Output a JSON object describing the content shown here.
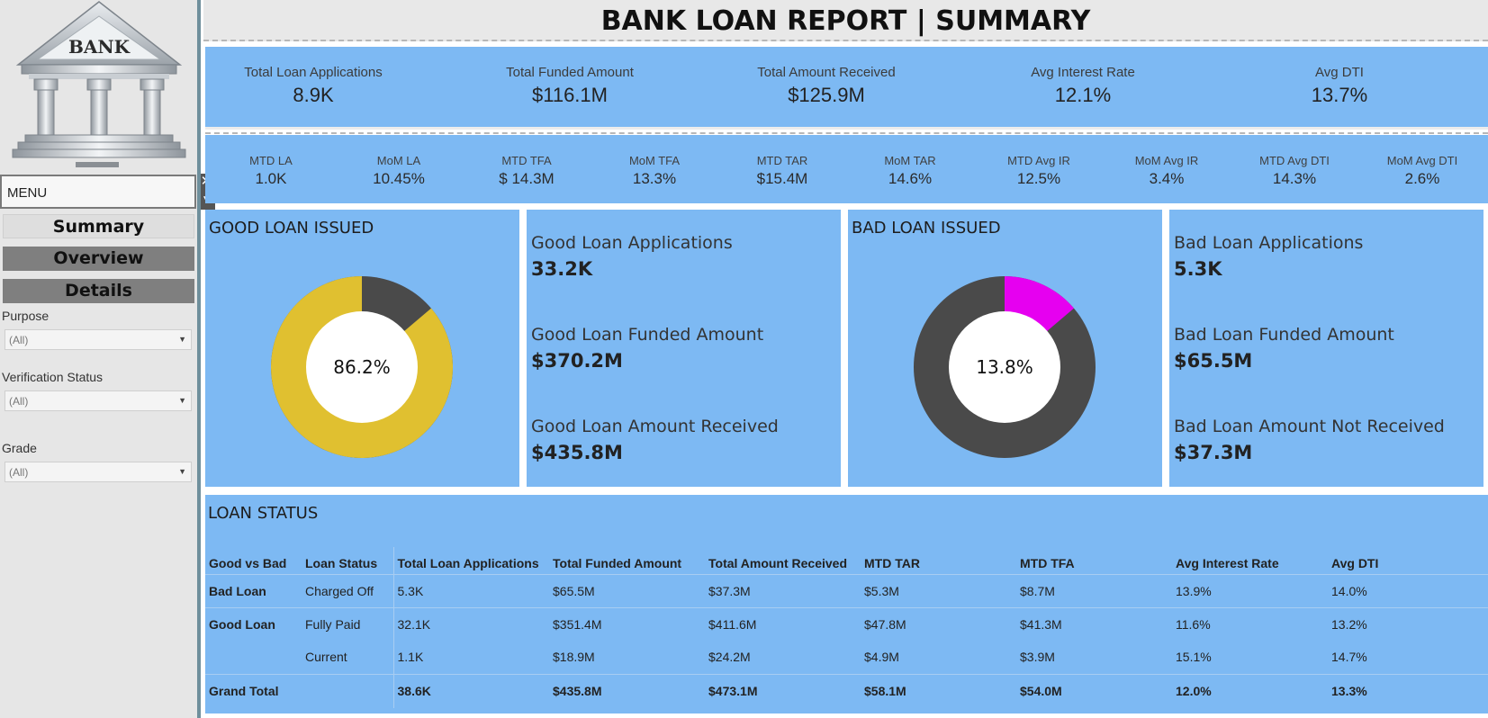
{
  "title": "BANK LOAN REPORT | SUMMARY",
  "sidebar": {
    "logo_text": "BANK",
    "menu_label": "MENU",
    "close_glyph": "✕",
    "collapse_glyph": "▼",
    "nav": [
      {
        "label": "Summary"
      },
      {
        "label": "Overview"
      },
      {
        "label": "Details"
      }
    ],
    "filters": [
      {
        "label": "Purpose",
        "value": "(All)"
      },
      {
        "label": "Verification Status",
        "value": "(All)"
      },
      {
        "label": "Grade",
        "value": "(All)"
      }
    ]
  },
  "kpis": [
    {
      "label": "Total Loan Applications",
      "value": "8.9K"
    },
    {
      "label": "Total Funded Amount",
      "value": "$116.1M"
    },
    {
      "label": "Total Amount Received",
      "value": "$125.9M"
    },
    {
      "label": "Avg Interest Rate",
      "value": "12.1%"
    },
    {
      "label": "Avg DTI",
      "value": "13.7%"
    }
  ],
  "mtd": [
    {
      "label": "MTD LA",
      "value": "1.0K"
    },
    {
      "label": "MoM LA",
      "value": "10.45%"
    },
    {
      "label": "MTD TFA",
      "value": "$ 14.3M"
    },
    {
      "label": "MoM TFA",
      "value": "13.3%"
    },
    {
      "label": "MTD TAR",
      "value": "$15.4M"
    },
    {
      "label": "MoM TAR",
      "value": "14.6%"
    },
    {
      "label": "MTD Avg IR",
      "value": "12.5%"
    },
    {
      "label": "MoM Avg IR",
      "value": "3.4%"
    },
    {
      "label": "MTD Avg DTI",
      "value": "14.3%"
    },
    {
      "label": "MoM Avg DTI",
      "value": "2.6%"
    }
  ],
  "good_loan": {
    "title": "GOOD LOAN ISSUED",
    "percent_label": "86.2%",
    "percent": 86.2,
    "color": "#e0c030",
    "rest_color": "#4a4a4a",
    "stats": [
      {
        "label": "Good Loan Applications",
        "value": "33.2K"
      },
      {
        "label": "Good Loan Funded Amount",
        "value": "$370.2M"
      },
      {
        "label": "Good Loan Amount Received",
        "value": "$435.8M"
      }
    ]
  },
  "bad_loan": {
    "title": "BAD LOAN ISSUED",
    "percent_label": "13.8%",
    "percent": 13.8,
    "color": "#e600f0",
    "rest_color": "#4a4a4a",
    "stats": [
      {
        "label": "Bad Loan Applications",
        "value": "5.3K"
      },
      {
        "label": "Bad Loan Funded Amount",
        "value": "$65.5M"
      },
      {
        "label": "Bad Loan Amount Not Received",
        "value": "$37.3M"
      }
    ]
  },
  "loan_status": {
    "title": "LOAN STATUS",
    "headers": [
      "Good vs Bad",
      "Loan Status",
      "Total Loan Applications",
      "Total Funded Amount",
      "Total Amount Received",
      "MTD TAR",
      "MTD TFA",
      "Avg Interest Rate",
      "Avg DTI"
    ],
    "rows": [
      [
        "Bad Loan",
        "Charged Off",
        "5.3K",
        "$65.5M",
        "$37.3M",
        "$5.3M",
        "$8.7M",
        "13.9%",
        "14.0%"
      ],
      [
        "Good Loan",
        "Fully Paid",
        "32.1K",
        "$351.4M",
        "$411.6M",
        "$47.8M",
        "$41.3M",
        "11.6%",
        "13.2%"
      ],
      [
        "",
        "Current",
        "1.1K",
        "$18.9M",
        "$24.2M",
        "$4.9M",
        "$3.9M",
        "15.1%",
        "14.7%"
      ]
    ],
    "total": [
      "Grand Total",
      "",
      "38.6K",
      "$435.8M",
      "$473.1M",
      "$58.1M",
      "$54.0M",
      "12.0%",
      "13.3%"
    ]
  },
  "colors": {
    "panel": "#7db9f3",
    "sidebar": "#e6e6e6",
    "nav_active": "#dedede",
    "nav_inactive": "#7f7f7f"
  }
}
